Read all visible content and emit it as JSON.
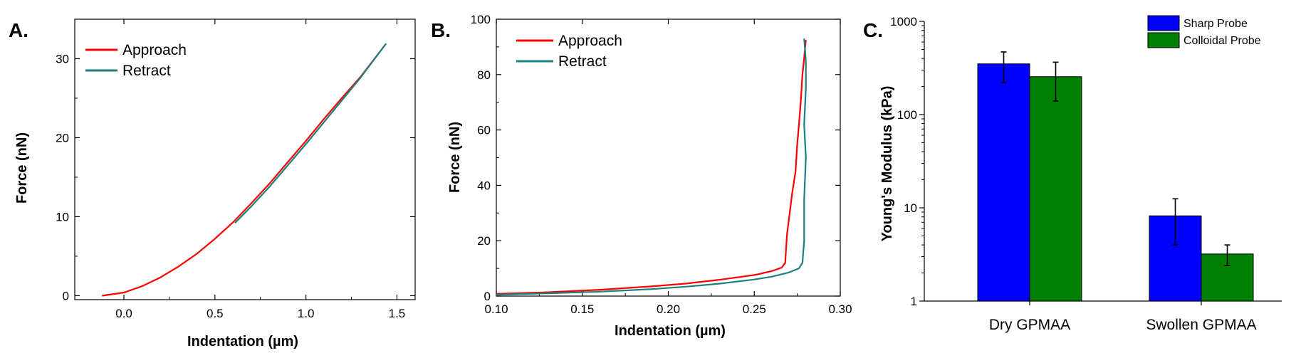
{
  "panels": [
    "A.",
    "B.",
    "C."
  ],
  "colors": {
    "approach": "#ff0000",
    "retract": "#1a8080",
    "sharp": "#0000ff",
    "colloidal": "#008000"
  },
  "chart_data": [
    {
      "type": "line",
      "panel": "A.",
      "xlabel": "Indentation (µm)",
      "ylabel": "Force (nN)",
      "xlim": [
        -0.27,
        1.6
      ],
      "ylim": [
        -0.5,
        35
      ],
      "xticks": [
        "0.0",
        "0.5",
        "1.0",
        "1.5"
      ],
      "yticks": [
        "0",
        "10",
        "20",
        "30"
      ],
      "legend": "top-left",
      "series": [
        {
          "name": "Approach",
          "color": "#ff0000",
          "x": [
            -0.12,
            0.0,
            0.1,
            0.2,
            0.3,
            0.4,
            0.5,
            0.6,
            0.7,
            0.8,
            0.9,
            1.0,
            1.1,
            1.2,
            1.3,
            1.44
          ],
          "y": [
            0.0,
            0.4,
            1.2,
            2.3,
            3.7,
            5.3,
            7.2,
            9.3,
            11.7,
            14.2,
            16.9,
            19.6,
            22.4,
            25.1,
            27.7,
            31.9
          ]
        },
        {
          "name": "Retract",
          "color": "#1a8080",
          "x": [
            0.61,
            0.7,
            0.8,
            0.9,
            1.0,
            1.1,
            1.2,
            1.3,
            1.44
          ],
          "y": [
            9.2,
            11.3,
            13.8,
            16.5,
            19.2,
            22.0,
            24.8,
            27.6,
            31.9
          ]
        }
      ]
    },
    {
      "type": "line",
      "panel": "B.",
      "xlabel": "Indentation (µm)",
      "ylabel": "Force (nN)",
      "xlim": [
        0.1,
        0.3
      ],
      "ylim": [
        0,
        100
      ],
      "xticks": [
        "0.10",
        "0.15",
        "0.20",
        "0.25",
        "0.30"
      ],
      "yticks": [
        "0",
        "20",
        "40",
        "60",
        "80",
        "100"
      ],
      "legend": "top-left",
      "series": [
        {
          "name": "Approach",
          "color": "#ff0000",
          "x": [
            0.1,
            0.13,
            0.16,
            0.19,
            0.21,
            0.23,
            0.25,
            0.26,
            0.266,
            0.268,
            0.269,
            0.271,
            0.272,
            0.274,
            0.275,
            0.276,
            0.277,
            0.278,
            0.279,
            0.28
          ],
          "y": [
            0.8,
            1.4,
            2.3,
            3.5,
            4.5,
            5.9,
            7.6,
            9.0,
            10.3,
            12.0,
            22.0,
            32.0,
            37.0,
            45.0,
            55.0,
            62.0,
            70.0,
            80.0,
            86.0,
            92.5
          ]
        },
        {
          "name": "Retract",
          "color": "#1a8080",
          "x": [
            0.1,
            0.13,
            0.16,
            0.19,
            0.21,
            0.23,
            0.25,
            0.26,
            0.27,
            0.276,
            0.278,
            0.279,
            0.279,
            0.28,
            0.279,
            0.28,
            0.28,
            0.279
          ],
          "y": [
            0.5,
            1.0,
            1.6,
            2.5,
            3.4,
            4.5,
            6.0,
            7.0,
            8.5,
            10.0,
            12.0,
            20.0,
            35.0,
            50.0,
            62.0,
            75.0,
            85.0,
            93.0
          ]
        }
      ]
    },
    {
      "type": "bar",
      "panel": "C.",
      "ylabel": "Young's Modulus (kPa)",
      "yscale": "log",
      "ylim": [
        1,
        1000
      ],
      "yticks": [
        "1",
        "10",
        "100",
        "1000"
      ],
      "categories": [
        "Dry GPMAA",
        "Swollen GPMAA"
      ],
      "legend": "top-right",
      "series": [
        {
          "name": "Sharp Probe",
          "color": "#0000ff",
          "values": [
            350,
            8.2
          ],
          "err_low": [
            220,
            4.0
          ],
          "err_high": [
            470,
            12.5
          ]
        },
        {
          "name": "Colloidal Probe",
          "color": "#008000",
          "values": [
            255,
            3.2
          ],
          "err_low": [
            140,
            2.4
          ],
          "err_high": [
            365,
            4.0
          ]
        }
      ]
    }
  ]
}
